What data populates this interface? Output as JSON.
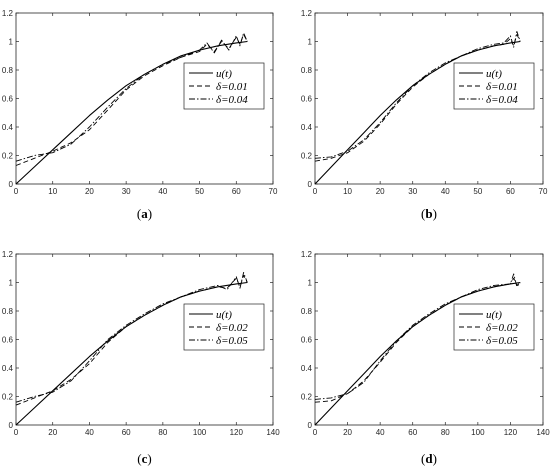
{
  "chart_data": [
    {
      "type": "line",
      "caption_open": "(",
      "caption_letter": "a",
      "caption_close": ")",
      "xlim": [
        0,
        70
      ],
      "ylim": [
        0,
        1.2
      ],
      "xticks": [
        0,
        10,
        20,
        30,
        40,
        50,
        60,
        70
      ],
      "yticks": [
        0,
        0.2,
        0.4,
        0.6,
        0.8,
        1,
        1.2
      ],
      "ytick_labels": [
        "0",
        "0.2",
        "0.4",
        "0.6",
        "0.8",
        "1",
        "1.2"
      ],
      "legend_position": "center-right",
      "series": [
        {
          "name": "u(t)",
          "style": "solid",
          "x": [
            0,
            5,
            10,
            15,
            20,
            25,
            30,
            35,
            40,
            45,
            50,
            55,
            60,
            63
          ],
          "y": [
            0,
            0.12,
            0.24,
            0.36,
            0.48,
            0.59,
            0.69,
            0.77,
            0.84,
            0.9,
            0.94,
            0.97,
            0.99,
            1.0
          ]
        },
        {
          "name": "δ=0.01",
          "style": "dashed",
          "x": [
            0,
            5,
            10,
            15,
            20,
            25,
            30,
            35,
            40,
            45,
            50,
            52,
            54,
            56,
            58,
            60,
            61,
            62,
            63
          ],
          "y": [
            0.13,
            0.18,
            0.23,
            0.29,
            0.38,
            0.52,
            0.66,
            0.76,
            0.83,
            0.89,
            0.93,
            0.98,
            0.93,
            1.0,
            0.95,
            1.03,
            0.98,
            1.05,
            1.0
          ]
        },
        {
          "name": "δ=0.04",
          "style": "dashdot",
          "x": [
            0,
            5,
            10,
            15,
            20,
            25,
            30,
            35,
            40,
            45,
            50,
            52,
            54,
            56,
            58,
            60,
            61,
            62,
            63
          ],
          "y": [
            0.16,
            0.2,
            0.22,
            0.28,
            0.4,
            0.54,
            0.67,
            0.77,
            0.84,
            0.89,
            0.94,
            0.99,
            0.92,
            1.01,
            0.94,
            1.04,
            0.97,
            1.06,
            1.0
          ]
        }
      ]
    },
    {
      "type": "line",
      "caption_open": "(",
      "caption_letter": "b",
      "caption_close": ")",
      "xlim": [
        0,
        70
      ],
      "ylim": [
        0,
        1.2
      ],
      "xticks": [
        0,
        10,
        20,
        30,
        40,
        50,
        60,
        70
      ],
      "yticks": [
        0,
        0.2,
        0.4,
        0.6,
        0.8,
        1,
        1.2
      ],
      "ytick_labels": [
        "0",
        "0.2",
        "0.4",
        "0.6",
        "0.8",
        "1",
        "1.2"
      ],
      "legend_position": "center-right",
      "series": [
        {
          "name": "u(t)",
          "style": "solid",
          "x": [
            0,
            5,
            10,
            15,
            20,
            25,
            30,
            35,
            40,
            45,
            50,
            55,
            60,
            63
          ],
          "y": [
            0,
            0.12,
            0.24,
            0.36,
            0.48,
            0.59,
            0.69,
            0.77,
            0.84,
            0.9,
            0.94,
            0.97,
            0.99,
            1.0
          ]
        },
        {
          "name": "δ=0.01",
          "style": "dashed",
          "x": [
            0,
            5,
            10,
            15,
            20,
            25,
            30,
            35,
            40,
            45,
            50,
            55,
            58,
            60,
            61,
            62,
            63
          ],
          "y": [
            0.16,
            0.18,
            0.22,
            0.3,
            0.42,
            0.56,
            0.68,
            0.77,
            0.84,
            0.9,
            0.94,
            0.97,
            0.98,
            1.02,
            0.97,
            1.05,
            1.0
          ]
        },
        {
          "name": "δ=0.04",
          "style": "dashdot",
          "x": [
            0,
            5,
            10,
            15,
            20,
            25,
            30,
            35,
            40,
            45,
            50,
            55,
            58,
            60,
            61,
            62,
            63
          ],
          "y": [
            0.18,
            0.19,
            0.23,
            0.31,
            0.43,
            0.57,
            0.69,
            0.78,
            0.85,
            0.9,
            0.95,
            0.98,
            0.99,
            1.04,
            0.96,
            1.07,
            1.0
          ]
        }
      ]
    },
    {
      "type": "line",
      "caption_open": "(",
      "caption_letter": "c",
      "caption_close": ")",
      "xlim": [
        0,
        140
      ],
      "ylim": [
        0,
        1.2
      ],
      "xticks": [
        0,
        20,
        40,
        60,
        80,
        100,
        120,
        140
      ],
      "yticks": [
        0,
        0.2,
        0.4,
        0.6,
        0.8,
        1,
        1.2
      ],
      "ytick_labels": [
        "0",
        "0.2",
        "0.4",
        "0.6",
        "0.8",
        "1",
        "1.2"
      ],
      "legend_position": "center-right",
      "series": [
        {
          "name": "u(t)",
          "style": "solid",
          "x": [
            0,
            10,
            20,
            30,
            40,
            50,
            60,
            70,
            80,
            90,
            100,
            110,
            120,
            126
          ],
          "y": [
            0,
            0.12,
            0.24,
            0.36,
            0.48,
            0.59,
            0.69,
            0.77,
            0.84,
            0.9,
            0.94,
            0.97,
            0.99,
            1.0
          ]
        },
        {
          "name": "δ=0.02",
          "style": "dashed",
          "x": [
            0,
            10,
            20,
            30,
            40,
            50,
            60,
            70,
            80,
            90,
            100,
            110,
            115,
            120,
            122,
            124,
            126
          ],
          "y": [
            0.14,
            0.19,
            0.24,
            0.32,
            0.43,
            0.58,
            0.69,
            0.77,
            0.84,
            0.9,
            0.94,
            0.97,
            0.96,
            1.03,
            0.97,
            1.05,
            1.0
          ]
        },
        {
          "name": "δ=0.05",
          "style": "dashdot",
          "x": [
            0,
            10,
            20,
            30,
            40,
            50,
            60,
            70,
            80,
            90,
            100,
            110,
            115,
            120,
            122,
            124,
            126
          ],
          "y": [
            0.16,
            0.2,
            0.23,
            0.31,
            0.45,
            0.6,
            0.7,
            0.78,
            0.85,
            0.9,
            0.95,
            0.98,
            0.95,
            1.04,
            0.96,
            1.07,
            1.0
          ]
        }
      ]
    },
    {
      "type": "line",
      "caption_open": "(",
      "caption_letter": "d",
      "caption_close": ")",
      "xlim": [
        0,
        140
      ],
      "ylim": [
        0,
        1.2
      ],
      "xticks": [
        0,
        20,
        40,
        60,
        80,
        100,
        120,
        140
      ],
      "yticks": [
        0,
        0.2,
        0.4,
        0.6,
        0.8,
        1,
        1.2
      ],
      "ytick_labels": [
        "0",
        "0.2",
        "0.4",
        "0.6",
        "0.8",
        "1",
        "1.2"
      ],
      "legend_position": "center-right",
      "series": [
        {
          "name": "u(t)",
          "style": "solid",
          "x": [
            0,
            10,
            20,
            30,
            40,
            50,
            60,
            70,
            80,
            90,
            100,
            110,
            120,
            126
          ],
          "y": [
            0,
            0.12,
            0.24,
            0.36,
            0.48,
            0.59,
            0.69,
            0.77,
            0.84,
            0.9,
            0.94,
            0.97,
            0.99,
            1.0
          ]
        },
        {
          "name": "δ=0.02",
          "style": "dashed",
          "x": [
            0,
            10,
            20,
            30,
            40,
            50,
            60,
            70,
            80,
            90,
            100,
            110,
            120,
            122,
            124,
            126
          ],
          "y": [
            0.16,
            0.17,
            0.22,
            0.31,
            0.44,
            0.58,
            0.69,
            0.77,
            0.84,
            0.9,
            0.94,
            0.97,
            0.99,
            1.03,
            0.98,
            1.0
          ]
        },
        {
          "name": "δ=0.05",
          "style": "dashdot",
          "x": [
            0,
            10,
            20,
            30,
            40,
            50,
            60,
            70,
            80,
            90,
            100,
            110,
            120,
            122,
            124,
            126
          ],
          "y": [
            0.18,
            0.19,
            0.22,
            0.3,
            0.45,
            0.59,
            0.7,
            0.78,
            0.85,
            0.9,
            0.95,
            0.98,
            0.99,
            1.06,
            0.97,
            1.0
          ]
        }
      ]
    }
  ]
}
